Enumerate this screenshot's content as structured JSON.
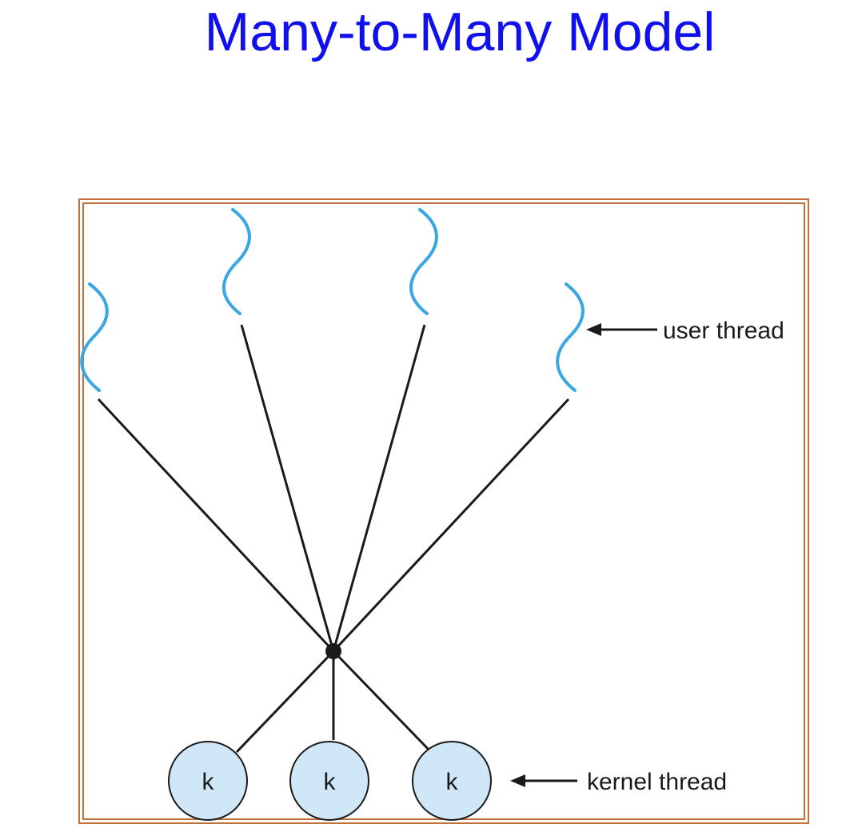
{
  "title": "Many-to-Many Model",
  "labels": {
    "user_thread": "user thread",
    "kernel_thread": "kernel thread"
  },
  "kernel_threads": [
    {
      "label": "k"
    },
    {
      "label": "k"
    },
    {
      "label": "k"
    }
  ],
  "user_threads_count": 4,
  "colors": {
    "title": "#1010ee",
    "frame": "#c0703a",
    "user_thread": "#3aa6e2",
    "kernel_fill": "#cfe7f6",
    "line": "#1a1a1a"
  },
  "icons": {
    "user_thread": "wavy-thread-icon",
    "kernel_thread": "circle-node-icon",
    "arrow": "left-arrow-icon"
  }
}
